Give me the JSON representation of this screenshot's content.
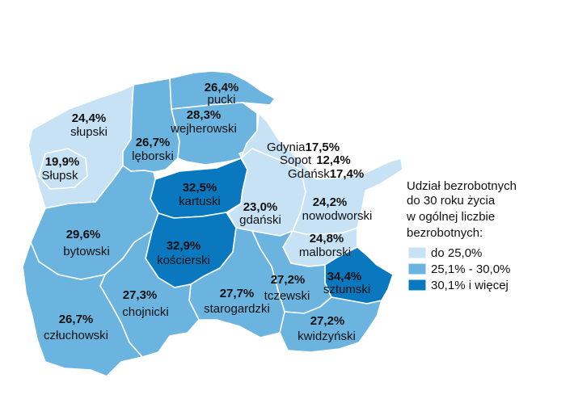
{
  "colors": {
    "c1": "#c6e2f4",
    "c2": "#6cb4e0",
    "c3": "#0a78bf",
    "border": "#ffffff"
  },
  "legend": {
    "title_lines": [
      "Udział bezrobotnych",
      "do 30 roku życia",
      "w ogólnej liczbie",
      "bezrobotnych:"
    ],
    "items": [
      {
        "label": "do 25,0%",
        "class": "c1"
      },
      {
        "label": "25,1% - 30,0%",
        "class": "c2"
      },
      {
        "label": "30,1% i więcej",
        "class": "c3"
      }
    ]
  },
  "regions": [
    {
      "name": "pucki",
      "value": "26,4%"
    },
    {
      "name": "wejherowski",
      "value": "28,3%"
    },
    {
      "name": "słupski",
      "value": "24,4%"
    },
    {
      "name": "lęborski",
      "value": "26,7%"
    },
    {
      "name": "Słupsk",
      "value": "19,9%"
    },
    {
      "name": "kartuski",
      "value": "32,5%"
    },
    {
      "name": "gdański",
      "value": "23,0%"
    },
    {
      "name": "nowodworski",
      "value": "24,2%"
    },
    {
      "name": "bytowski",
      "value": "29,6%"
    },
    {
      "name": "kościerski",
      "value": "32,9%"
    },
    {
      "name": "malborski",
      "value": "24,8%"
    },
    {
      "name": "sztumski",
      "value": "34,4%"
    },
    {
      "name": "chojnicki",
      "value": "27,3%"
    },
    {
      "name": "starogardzki",
      "value": "27,7%"
    },
    {
      "name": "tczewski",
      "value": "27,2%"
    },
    {
      "name": "człuchowski",
      "value": "26,7%"
    },
    {
      "name": "kwidzyński",
      "value": "27,2%"
    }
  ],
  "cities": [
    {
      "name": "Gdynia",
      "value": "17,5%"
    },
    {
      "name": "Sopot",
      "value": "12,4%"
    },
    {
      "name": "Gdańsk",
      "value": "17,4%"
    }
  ]
}
